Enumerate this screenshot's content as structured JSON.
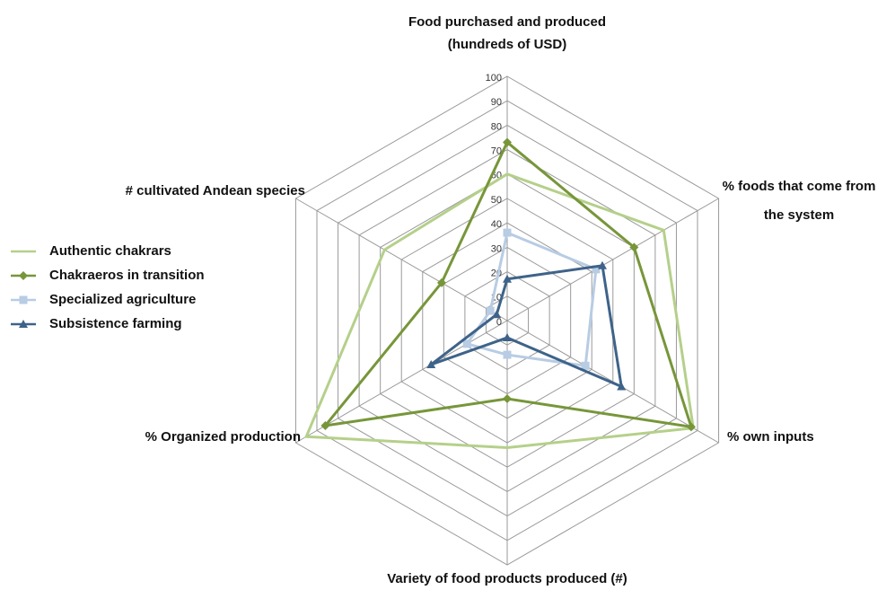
{
  "chart_data": {
    "type": "radar",
    "categories": [
      [
        "Food purchased and produced",
        "(hundreds of USD)"
      ],
      [
        "% foods that come from",
        "the system"
      ],
      "% own inputs",
      "Variety of food products produced (#)",
      "% Organized production",
      "# cultivated Andean species"
    ],
    "ylim": [
      0,
      100
    ],
    "yticks": [
      0,
      10,
      20,
      30,
      40,
      50,
      60,
      70,
      80,
      90,
      100
    ],
    "grid": true,
    "legend": "left",
    "series": [
      {
        "name": "Authentic chakrars",
        "color": "#b5d08a",
        "marker": "none",
        "values": [
          60,
          74,
          88,
          52,
          95,
          58
        ]
      },
      {
        "name": "Chakraeros in transition",
        "color": "#77963a",
        "marker": "diamond",
        "values": [
          73,
          60,
          87,
          32,
          86,
          31
        ]
      },
      {
        "name": "Specialized agriculture",
        "color": "#b8cce4",
        "marker": "square",
        "values": [
          36,
          42,
          37,
          14,
          19,
          8
        ]
      },
      {
        "name": "Subsistence farming",
        "color": "#3e6389",
        "marker": "triangle",
        "values": [
          17,
          45,
          54,
          7,
          36,
          5
        ]
      }
    ]
  }
}
